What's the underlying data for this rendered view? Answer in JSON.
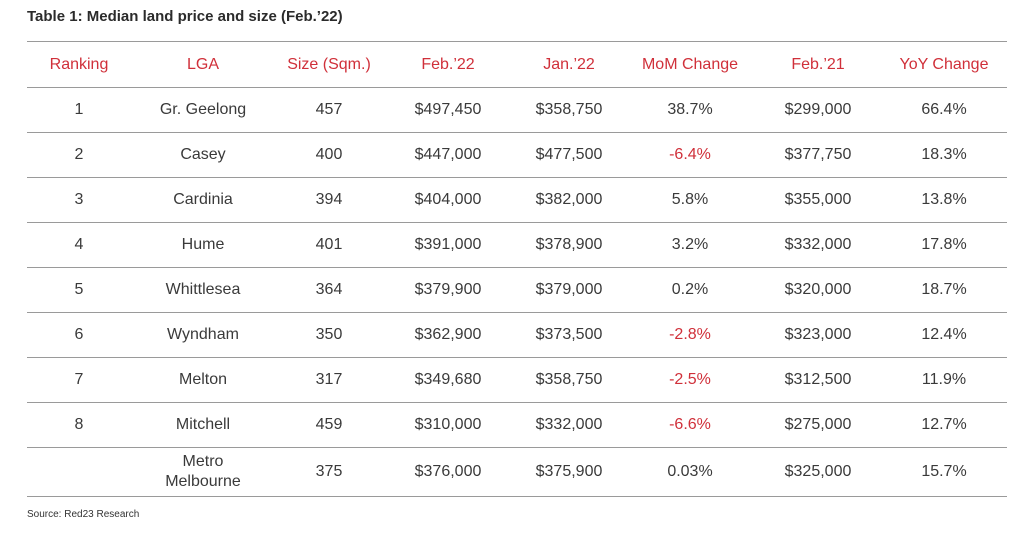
{
  "title": "Table 1: Median land price and size (Feb.’22)",
  "accent_color": "#d0303a",
  "columns": [
    "Ranking",
    "LGA",
    "Size (Sqm.)",
    "Feb.’22",
    "Jan.’22",
    "MoM Change",
    "Feb.’21",
    "YoY Change"
  ],
  "rows": [
    {
      "ranking": "1",
      "lga": "Gr. Geelong",
      "size": "457",
      "feb22": "$497,450",
      "jan22": "$358,750",
      "mom": "38.7%",
      "feb21": "$299,000",
      "yoy": "66.4%"
    },
    {
      "ranking": "2",
      "lga": "Casey",
      "size": "400",
      "feb22": "$447,000",
      "jan22": "$477,500",
      "mom": "-6.4%",
      "feb21": "$377,750",
      "yoy": "18.3%"
    },
    {
      "ranking": "3",
      "lga": "Cardinia",
      "size": "394",
      "feb22": "$404,000",
      "jan22": "$382,000",
      "mom": "5.8%",
      "feb21": "$355,000",
      "yoy": "13.8%"
    },
    {
      "ranking": "4",
      "lga": "Hume",
      "size": "401",
      "feb22": "$391,000",
      "jan22": "$378,900",
      "mom": "3.2%",
      "feb21": "$332,000",
      "yoy": "17.8%"
    },
    {
      "ranking": "5",
      "lga": "Whittlesea",
      "size": "364",
      "feb22": "$379,900",
      "jan22": "$379,000",
      "mom": "0.2%",
      "feb21": "$320,000",
      "yoy": "18.7%"
    },
    {
      "ranking": "6",
      "lga": "Wyndham",
      "size": "350",
      "feb22": "$362,900",
      "jan22": "$373,500",
      "mom": "-2.8%",
      "feb21": "$323,000",
      "yoy": "12.4%"
    },
    {
      "ranking": "7",
      "lga": "Melton",
      "size": "317",
      "feb22": "$349,680",
      "jan22": "$358,750",
      "mom": "-2.5%",
      "feb21": "$312,500",
      "yoy": "11.9%"
    },
    {
      "ranking": "8",
      "lga": "Mitchell",
      "size": "459",
      "feb22": "$310,000",
      "jan22": "$332,000",
      "mom": "-6.6%",
      "feb21": "$275,000",
      "yoy": "12.7%"
    },
    {
      "ranking": "",
      "lga": "Metro Melbourne",
      "size": "375",
      "feb22": "$376,000",
      "jan22": "$375,900",
      "mom": "0.03%",
      "feb21": "$325,000",
      "yoy": "15.7%"
    }
  ],
  "source": "Source: Red23 Research"
}
